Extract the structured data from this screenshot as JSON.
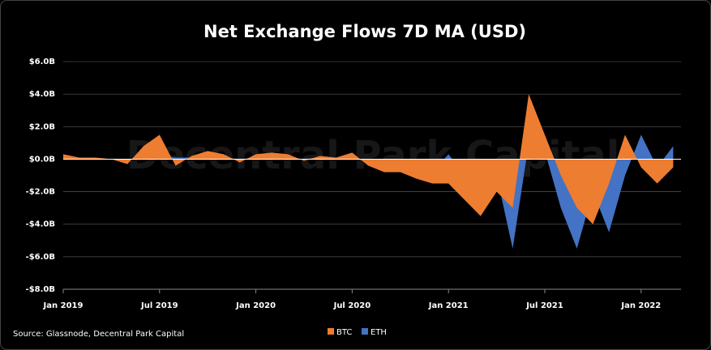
{
  "chart_data": {
    "type": "area",
    "title": "Net Exchange Flows 7D MA (USD)",
    "watermark": "Decentral Park Capital",
    "source": "Source: Glassnode, Decentral Park Capital",
    "x": [
      "Jan 2019",
      "Feb 2019",
      "Mar 2019",
      "Apr 2019",
      "May 2019",
      "Jun 2019",
      "Jul 2019",
      "Aug 2019",
      "Sep 2019",
      "Oct 2019",
      "Nov 2019",
      "Dec 2019",
      "Jan 2020",
      "Feb 2020",
      "Mar 2020",
      "Apr 2020",
      "May 2020",
      "Jun 2020",
      "Jul 2020",
      "Aug 2020",
      "Sep 2020",
      "Oct 2020",
      "Nov 2020",
      "Dec 2020",
      "Jan 2021",
      "Feb 2021",
      "Mar 2021",
      "Apr 2021",
      "May 2021",
      "Jun 2021",
      "Jul 2021",
      "Aug 2021",
      "Sep 2021",
      "Oct 2021",
      "Nov 2021",
      "Dec 2021",
      "Jan 2022",
      "Feb 2022",
      "Mar 2022"
    ],
    "xticks": [
      "Jan 2019",
      "Jul 2019",
      "Jan 2020",
      "Jul 2020",
      "Jan 2021",
      "Jul 2021",
      "Jan 2022"
    ],
    "series": [
      {
        "name": "ETH",
        "color": "#4472c4",
        "values": [
          0.2,
          0.1,
          0.05,
          0,
          0,
          0.1,
          0.2,
          0.1,
          0.1,
          0.1,
          0.1,
          0,
          0.1,
          0.1,
          0.1,
          0,
          0.1,
          0.1,
          0.1,
          -0.2,
          -0.6,
          -0.6,
          -1.0,
          -0.8,
          0.3,
          -1.0,
          -0.5,
          -1.0,
          -5.5,
          1.0,
          0.5,
          -3.0,
          -5.5,
          -2.0,
          -4.5,
          -1.0,
          1.5,
          -0.5,
          0.8
        ]
      },
      {
        "name": "BTC",
        "color": "#ed7d31",
        "values": [
          0.3,
          0.1,
          0.1,
          0,
          -0.3,
          0.8,
          1.5,
          -0.4,
          0.2,
          0.5,
          0.3,
          -0.2,
          0.3,
          0.4,
          0.3,
          -0.1,
          0.2,
          0.1,
          0.4,
          -0.4,
          -0.8,
          -0.8,
          -1.2,
          -1.5,
          -1.5,
          -2.5,
          -3.5,
          -2.0,
          -3.0,
          4.0,
          1.5,
          -1.0,
          -3.0,
          -4.0,
          -1.5,
          1.5,
          -0.5,
          -1.5,
          -0.5
        ]
      }
    ],
    "ylim": [
      -8,
      6.6
    ],
    "yticks": [
      {
        "value": -8,
        "label": "-$8.0B"
      },
      {
        "value": -6,
        "label": "-$6.0B"
      },
      {
        "value": -4,
        "label": "-$4.0B"
      },
      {
        "value": -2,
        "label": "-$2.0B"
      },
      {
        "value": 0,
        "label": "$0.0B"
      },
      {
        "value": 2,
        "label": "$2.0B"
      },
      {
        "value": 4,
        "label": "$4.0B"
      },
      {
        "value": 6,
        "label": "$6.0B"
      }
    ],
    "grid": true,
    "legend": "bottom"
  }
}
